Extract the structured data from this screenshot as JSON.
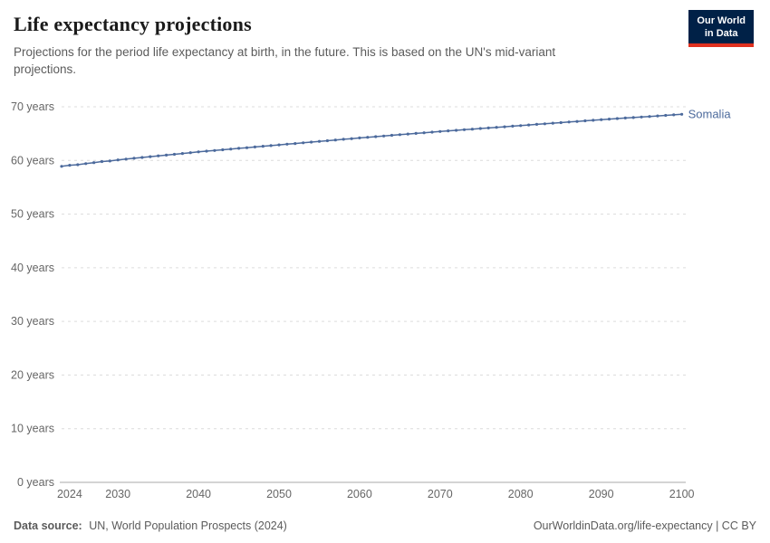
{
  "header": {
    "title": "Life expectancy projections",
    "subtitle": "Projections for the period life expectancy at birth, in the future. This is based on the UN's mid-variant projections.",
    "logo": {
      "line1": "Our World",
      "line2": "in Data"
    }
  },
  "footer": {
    "source_label": "Data source:",
    "source_text": "UN, World Population Prospects (2024)",
    "rights": "OurWorldinData.org/life-expectancy | CC BY"
  },
  "colors": {
    "series_blue": "#4c6a9c",
    "logo_background": "#002147",
    "logo_accent_red": "#e0311f",
    "axis_text": "#666666",
    "gridline": "#dcdcdc",
    "axis_line": "#a8a8a8",
    "subtitle_text": "#5b5b5b"
  },
  "chart_data": {
    "type": "line",
    "title": "Life expectancy projections",
    "xlabel": "",
    "ylabel": "",
    "grid": "horizontal-dashed",
    "legend_position": "end-of-line-label",
    "xlim": [
      2023,
      2100.5
    ],
    "ylim": [
      0,
      70
    ],
    "x_ticks": [
      2024,
      2030,
      2040,
      2050,
      2060,
      2070,
      2080,
      2090,
      2100
    ],
    "y_ticks": [
      0,
      10,
      20,
      30,
      40,
      50,
      60,
      70
    ],
    "y_tick_suffix": " years",
    "series": [
      {
        "name": "Somalia",
        "color": "#4c6a9c",
        "x_start": 2023,
        "x_step": 1,
        "values": [
          58.9,
          59.1,
          59.2,
          59.4,
          59.6,
          59.8,
          59.9,
          60.1,
          60.25,
          60.4,
          60.55,
          60.7,
          60.85,
          61.0,
          61.15,
          61.3,
          61.45,
          61.6,
          61.73,
          61.86,
          61.99,
          62.12,
          62.25,
          62.38,
          62.51,
          62.64,
          62.77,
          62.9,
          63.03,
          63.16,
          63.29,
          63.42,
          63.55,
          63.68,
          63.81,
          63.94,
          64.07,
          64.2,
          64.32,
          64.44,
          64.56,
          64.68,
          64.8,
          64.92,
          65.04,
          65.16,
          65.28,
          65.4,
          65.51,
          65.62,
          65.73,
          65.84,
          65.95,
          66.06,
          66.17,
          66.28,
          66.39,
          66.5,
          66.61,
          66.72,
          66.83,
          66.94,
          67.05,
          67.16,
          67.27,
          67.38,
          67.49,
          67.6,
          67.7,
          67.8,
          67.9,
          68.0,
          68.1,
          68.2,
          68.3,
          68.4,
          68.5,
          68.6
        ]
      }
    ]
  }
}
